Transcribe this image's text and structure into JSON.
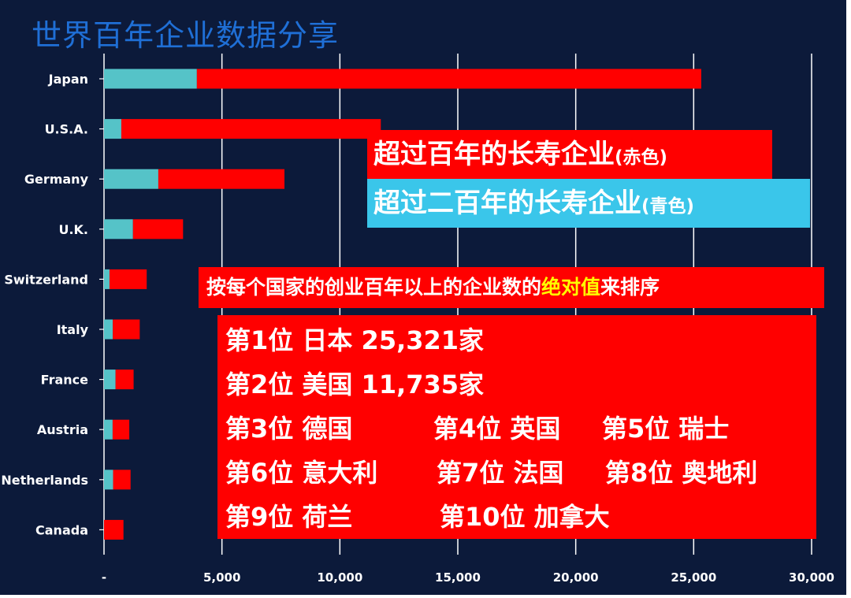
{
  "header": {
    "title": "世界百年企业数据分享"
  },
  "chart_data": {
    "type": "bar",
    "orientation": "horizontal",
    "stacked": true,
    "categories": [
      "Japan",
      "U.S.A.",
      "Germany",
      "U.K.",
      "Switzerland",
      "Italy",
      "France",
      "Austria",
      "Netherlands",
      "Canada"
    ],
    "series": [
      {
        "name": "超过二百年的长寿企业(青色)",
        "color": "#55c3c8",
        "values": [
          3937,
          734,
          2303,
          1228,
          233,
          372,
          490,
          365,
          385,
          0
        ]
      },
      {
        "name": "超过百年的长寿企业(赤色)",
        "color": "#ff0000",
        "values": [
          21384,
          11001,
          5347,
          2123,
          1577,
          1142,
          765,
          706,
          742,
          825
        ]
      }
    ],
    "xlim": [
      0,
      30000
    ],
    "xticks": [
      "-",
      "5,000",
      "10,000",
      "15,000",
      "20,000",
      "25,000",
      "30,000"
    ],
    "grid": true
  },
  "legend": {
    "red_main": "超过百年的长寿企业",
    "red_paren": "(赤色)",
    "cyan_main": "超过二百年的长寿企业",
    "cyan_paren": "(青色)"
  },
  "note": {
    "prefix": "按每个国家的创业百年以上的企业数的",
    "highlight": "绝对值",
    "suffix": "来排序"
  },
  "ranking": {
    "r1": "第1位 日本 25,321家",
    "r2": "第2位 美国 11,735家",
    "r3": "第3位 德国",
    "r4": "第4位 英国",
    "r5": "第5位 瑞士",
    "r6": "第6位 意大利",
    "r7": "第7位 法国",
    "r8": "第8位 奥地利",
    "r9": "第9位 荷兰",
    "r10": "第10位 加拿大"
  }
}
